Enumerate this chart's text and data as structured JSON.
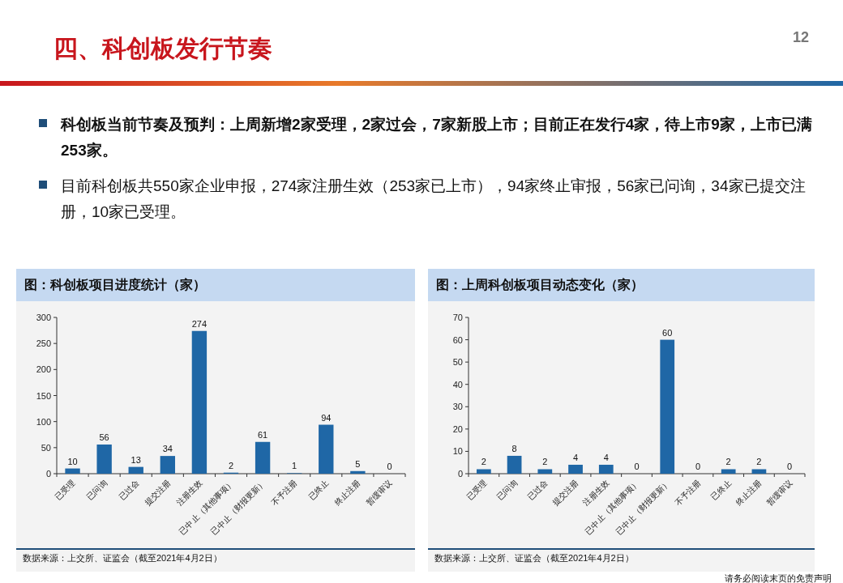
{
  "chart_data": [
    {
      "type": "other",
      "title": "四、科创板发行节奏",
      "annotations": [
        "科创板当前节奏及预判：上周新增2家受理，2家过会，7家新股上市；目前正在发行4家，待上市9家，上市已满253家。",
        "目前科创板共550家企业申报，274家注册生效（253家已上市），94家终止审报，56家已问询，34家已提交注册，10家已受理。",
        "12",
        "请务必阅读末页的免责声明"
      ]
    },
    {
      "type": "bar",
      "title": "图：科创板项目进度统计（家）",
      "categories": [
        "已受理",
        "已问询",
        "已过会",
        "提交注册",
        "注册生效",
        "已中止（其他事项）",
        "已中止（财报更新）",
        "不予注册",
        "已终止",
        "终止注册",
        "暂缓审议"
      ],
      "series": [
        {
          "color": "#1f67a6",
          "values": [
            10,
            56,
            13,
            34,
            274,
            2,
            61,
            1,
            94,
            5,
            0
          ]
        }
      ],
      "ylim": [
        0,
        300
      ],
      "yticks": [
        0,
        50,
        100,
        150,
        200,
        250,
        300
      ],
      "data_labels": true,
      "grid": false,
      "annotations": [
        "数据来源：上交所、证监会（截至2021年4月2日）"
      ]
    },
    {
      "type": "bar",
      "title": "图：上周科创板项目动态变化（家）",
      "categories": [
        "已受理",
        "已问询",
        "已过会",
        "提交注册",
        "注册生效",
        "已中止（其他事项）",
        "已中止（财报更新）",
        "不予注册",
        "已终止",
        "终止注册",
        "暂缓审议"
      ],
      "series": [
        {
          "color": "#1f67a6",
          "values": [
            2,
            8,
            2,
            4,
            4,
            0,
            60,
            0,
            2,
            2,
            0
          ]
        }
      ],
      "ylim": [
        0,
        70
      ],
      "yticks": [
        0,
        10,
        20,
        30,
        40,
        50,
        60,
        70
      ],
      "data_labels": true,
      "grid": false,
      "annotations": [
        "数据来源：上交所、证监会（截至2021年4月2日）"
      ]
    }
  ]
}
